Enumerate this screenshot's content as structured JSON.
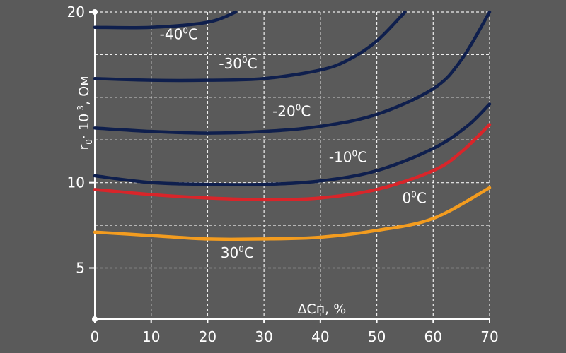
{
  "chart_data": {
    "type": "line",
    "title": "",
    "xlabel": "ΔCп, %",
    "ylabel_main": "r",
    "ylabel_sub": "0",
    "ylabel_mid": "· 10",
    "ylabel_exp": "-3",
    "ylabel_tail": ", Ом",
    "xlim": [
      0,
      70
    ],
    "ylim": [
      2,
      20
    ],
    "x_ticks": [
      0,
      10,
      20,
      30,
      40,
      50,
      60,
      70
    ],
    "y_ticks": [
      5,
      10,
      20
    ],
    "grid": true,
    "colors": {
      "background": "#5a5a5a",
      "grid": "#ffffff",
      "axis": "#ffffff",
      "navy": "#0f1f4d",
      "red": "#d9252a",
      "orange": "#f39c1f"
    },
    "series": [
      {
        "label_prefix": "-40",
        "label_sup": "0",
        "label_suffix": "C",
        "color": "navy",
        "label_at": [
          11.5,
          18.4
        ],
        "points": [
          [
            0,
            19.1
          ],
          [
            10,
            19.1
          ],
          [
            20,
            19.4
          ],
          [
            25,
            20.0
          ]
        ]
      },
      {
        "label_prefix": "-30",
        "label_sup": "0",
        "label_suffix": "C",
        "color": "navy",
        "label_at": [
          22,
          16.7
        ],
        "points": [
          [
            0,
            16.1
          ],
          [
            10,
            16.0
          ],
          [
            20,
            16.0
          ],
          [
            30,
            16.1
          ],
          [
            40,
            16.6
          ],
          [
            45,
            17.2
          ],
          [
            50,
            18.3
          ],
          [
            55,
            20.0
          ]
        ]
      },
      {
        "label_prefix": "-20",
        "label_sup": "0",
        "label_suffix": "C",
        "color": "navy",
        "label_at": [
          31.5,
          13.9
        ],
        "points": [
          [
            0,
            13.2
          ],
          [
            10,
            13.0
          ],
          [
            20,
            12.9
          ],
          [
            30,
            13.0
          ],
          [
            40,
            13.3
          ],
          [
            50,
            14.0
          ],
          [
            60,
            15.5
          ],
          [
            65,
            17.2
          ],
          [
            70,
            20.0
          ]
        ]
      },
      {
        "label_prefix": "-10",
        "label_sup": "0",
        "label_suffix": "C",
        "color": "navy",
        "label_at": [
          41.5,
          11.2
        ],
        "points": [
          [
            0,
            10.4
          ],
          [
            10,
            10.0
          ],
          [
            20,
            9.9
          ],
          [
            30,
            9.9
          ],
          [
            40,
            10.1
          ],
          [
            50,
            10.7
          ],
          [
            60,
            12.0
          ],
          [
            66,
            13.3
          ],
          [
            70,
            14.6
          ]
        ]
      },
      {
        "label_prefix": "0",
        "label_sup": "0",
        "label_suffix": "C",
        "color": "red",
        "label_at": [
          54.5,
          8.8
        ],
        "points": [
          [
            0,
            9.6
          ],
          [
            10,
            9.3
          ],
          [
            20,
            9.1
          ],
          [
            30,
            9.0
          ],
          [
            40,
            9.1
          ],
          [
            50,
            9.6
          ],
          [
            60,
            10.7
          ],
          [
            65,
            11.8
          ],
          [
            70,
            13.4
          ]
        ]
      },
      {
        "label_prefix": "30",
        "label_sup": "0",
        "label_suffix": "C",
        "color": "orange",
        "label_at": [
          22.3,
          5.6
        ],
        "points": [
          [
            0,
            7.1
          ],
          [
            10,
            6.9
          ],
          [
            20,
            6.7
          ],
          [
            30,
            6.7
          ],
          [
            40,
            6.8
          ],
          [
            50,
            7.2
          ],
          [
            60,
            7.9
          ],
          [
            70,
            9.7
          ]
        ]
      }
    ]
  }
}
